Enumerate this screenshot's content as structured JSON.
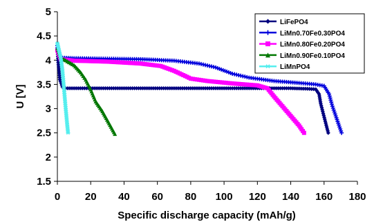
{
  "chart_data": {
    "type": "line",
    "title": "",
    "xlabel": "Specific discharge capacity (mAh/g)",
    "ylabel": "U [V]",
    "xlim": [
      0,
      180
    ],
    "ylim": [
      1.5,
      5
    ],
    "xticks": [
      0,
      20,
      40,
      60,
      80,
      100,
      120,
      140,
      160,
      180
    ],
    "yticks": [
      1.5,
      2,
      2.5,
      3,
      3.5,
      4,
      4.5,
      5
    ],
    "ytick_labels": [
      "1.5",
      "2",
      "2.5",
      "3",
      "3.5",
      "4",
      "4.5",
      "5"
    ],
    "grid": false,
    "legend_position": "top-right",
    "series": [
      {
        "name": "LiFePO4",
        "color": "#00007f",
        "marker": "diamond",
        "points": [
          [
            0,
            4.25
          ],
          [
            0.5,
            3.95
          ],
          [
            1.5,
            3.6
          ],
          [
            3,
            3.45
          ],
          [
            5,
            3.42
          ],
          [
            20,
            3.42
          ],
          [
            40,
            3.42
          ],
          [
            60,
            3.42
          ],
          [
            80,
            3.42
          ],
          [
            100,
            3.42
          ],
          [
            120,
            3.42
          ],
          [
            140,
            3.42
          ],
          [
            150,
            3.41
          ],
          [
            155,
            3.4
          ],
          [
            157,
            3.3
          ],
          [
            158,
            3.1
          ],
          [
            159.5,
            2.9
          ],
          [
            161,
            2.7
          ],
          [
            162.5,
            2.5
          ]
        ]
      },
      {
        "name": "LiMn0.70Fe0.30PO4",
        "color": "#0000dd",
        "marker": "plus",
        "points": [
          [
            0,
            4.3
          ],
          [
            1,
            4.1
          ],
          [
            3,
            4.05
          ],
          [
            10,
            4.04
          ],
          [
            30,
            4.03
          ],
          [
            50,
            4.02
          ],
          [
            70,
            3.99
          ],
          [
            85,
            3.93
          ],
          [
            95,
            3.85
          ],
          [
            105,
            3.72
          ],
          [
            115,
            3.64
          ],
          [
            130,
            3.57
          ],
          [
            145,
            3.53
          ],
          [
            155,
            3.5
          ],
          [
            160,
            3.47
          ],
          [
            163,
            3.3
          ],
          [
            165,
            3.05
          ],
          [
            167,
            2.85
          ],
          [
            168.5,
            2.7
          ],
          [
            170.5,
            2.5
          ]
        ]
      },
      {
        "name": "LiMn0.80Fe0.20PO4",
        "color": "#ff00ff",
        "marker": "square",
        "points": [
          [
            0,
            4.2
          ],
          [
            2,
            4.02
          ],
          [
            10,
            3.99
          ],
          [
            30,
            3.97
          ],
          [
            50,
            3.93
          ],
          [
            62,
            3.88
          ],
          [
            70,
            3.78
          ],
          [
            80,
            3.62
          ],
          [
            90,
            3.57
          ],
          [
            105,
            3.52
          ],
          [
            120,
            3.48
          ],
          [
            126,
            3.42
          ],
          [
            130,
            3.25
          ],
          [
            135,
            3.05
          ],
          [
            140,
            2.85
          ],
          [
            145,
            2.65
          ],
          [
            148,
            2.5
          ]
        ]
      },
      {
        "name": "LiMn0.90Fe0.10PO4",
        "color": "#007700",
        "marker": "triangle",
        "points": [
          [
            0,
            4.25
          ],
          [
            2,
            4.05
          ],
          [
            5,
            4.0
          ],
          [
            10,
            3.9
          ],
          [
            14,
            3.75
          ],
          [
            17,
            3.6
          ],
          [
            20,
            3.4
          ],
          [
            23,
            3.15
          ],
          [
            27,
            2.95
          ],
          [
            31,
            2.7
          ],
          [
            34.5,
            2.48
          ]
        ]
      },
      {
        "name": "LiMnPO4",
        "color": "#55eeee",
        "marker": "star",
        "points": [
          [
            0,
            4.35
          ],
          [
            1,
            4.2
          ],
          [
            2,
            4.05
          ],
          [
            3,
            3.8
          ],
          [
            4,
            3.4
          ],
          [
            5,
            3.0
          ],
          [
            5.8,
            2.7
          ],
          [
            6.4,
            2.5
          ]
        ]
      }
    ]
  }
}
